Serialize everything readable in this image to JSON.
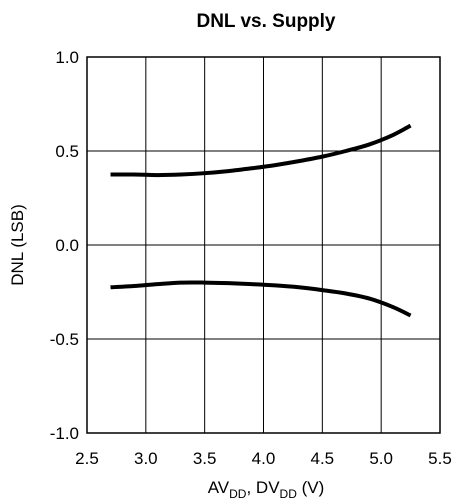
{
  "chart_data": {
    "type": "line",
    "title": "DNL vs. Supply",
    "xlabel_main": "AV",
    "xlabel_sub1": "DD",
    "xlabel_mid": ", DV",
    "xlabel_sub2": "DD",
    "xlabel_end": " (V)",
    "ylabel": "DNL (LSB)",
    "xlim": [
      2.5,
      5.5
    ],
    "ylim": [
      -1.0,
      1.0
    ],
    "x_ticks": [
      "2.5",
      "3.0",
      "3.5",
      "4.0",
      "4.5",
      "5.0",
      "5.5"
    ],
    "y_ticks": [
      "1.0",
      "0.5",
      "0.0",
      "-0.5",
      "-1.0"
    ],
    "grid": true,
    "series": [
      {
        "x": [
          2.7,
          2.9,
          3.1,
          3.3,
          3.5,
          3.7,
          3.9,
          4.1,
          4.3,
          4.5,
          4.7,
          4.9,
          5.1,
          5.25
        ],
        "y": [
          0.375,
          0.375,
          0.372,
          0.375,
          0.382,
          0.393,
          0.408,
          0.425,
          0.446,
          0.47,
          0.5,
          0.535,
          0.585,
          0.635
        ]
      },
      {
        "x": [
          2.7,
          2.9,
          3.1,
          3.3,
          3.5,
          3.7,
          3.9,
          4.1,
          4.3,
          4.5,
          4.7,
          4.9,
          5.1,
          5.25
        ],
        "y": [
          -0.225,
          -0.218,
          -0.208,
          -0.2,
          -0.2,
          -0.203,
          -0.208,
          -0.215,
          -0.225,
          -0.24,
          -0.258,
          -0.285,
          -0.33,
          -0.375
        ]
      }
    ]
  }
}
